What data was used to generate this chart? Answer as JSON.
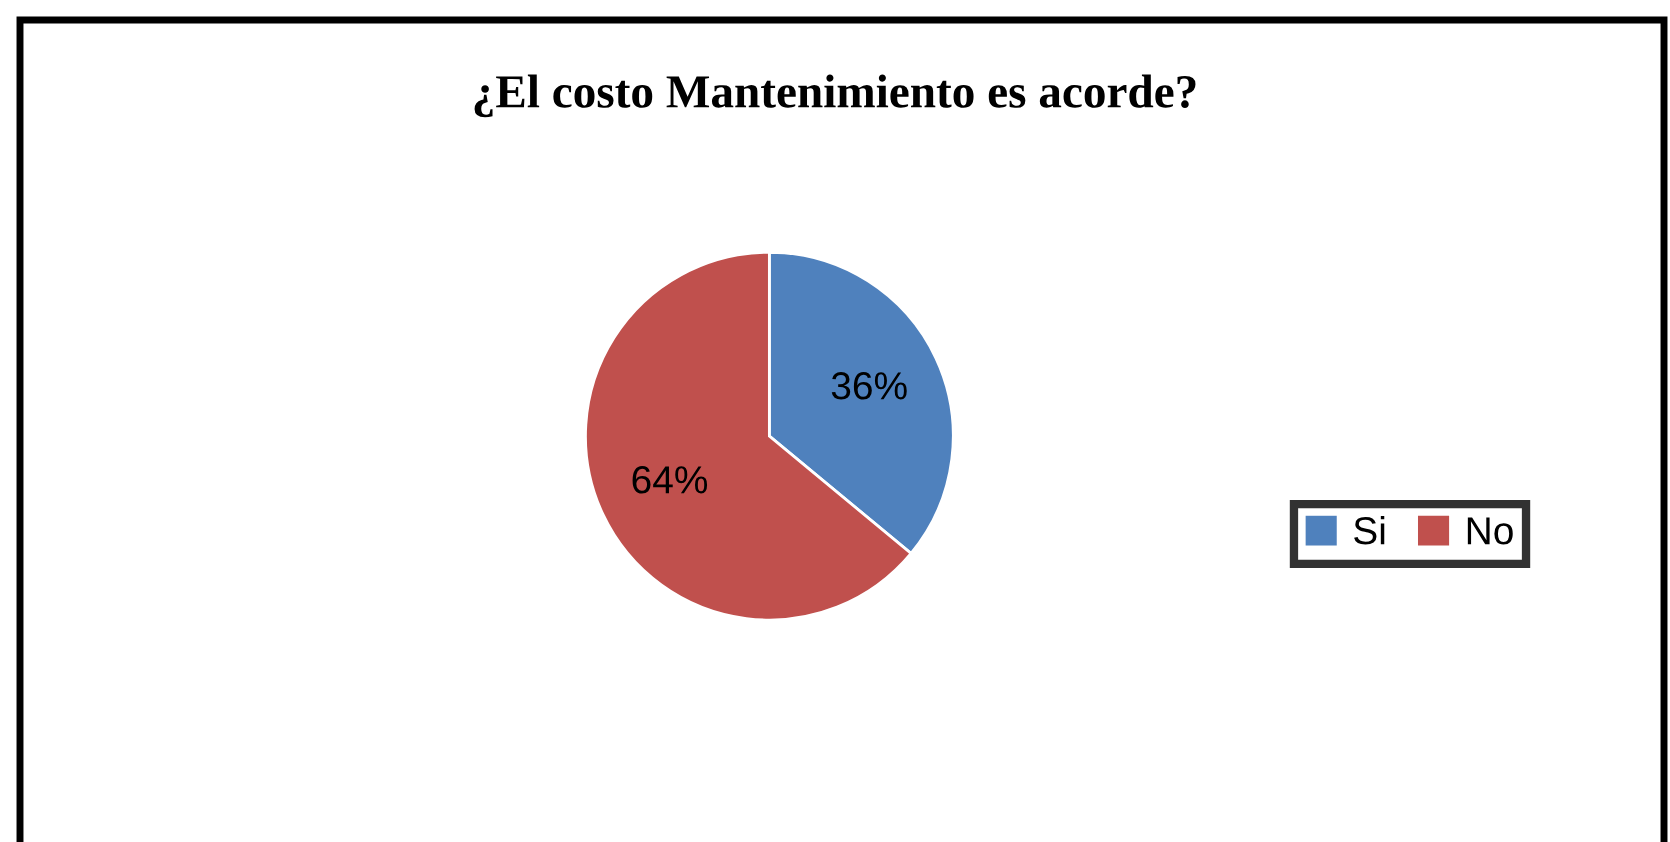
{
  "chart_data": {
    "type": "pie",
    "title": "¿El costo Mantenimiento es acorde?",
    "categories": [
      "Si",
      "No"
    ],
    "values": [
      36,
      64
    ],
    "colors": [
      "#4f81bd",
      "#c0504d"
    ],
    "value_labels": [
      "36%",
      "64%"
    ],
    "legend": "right"
  }
}
